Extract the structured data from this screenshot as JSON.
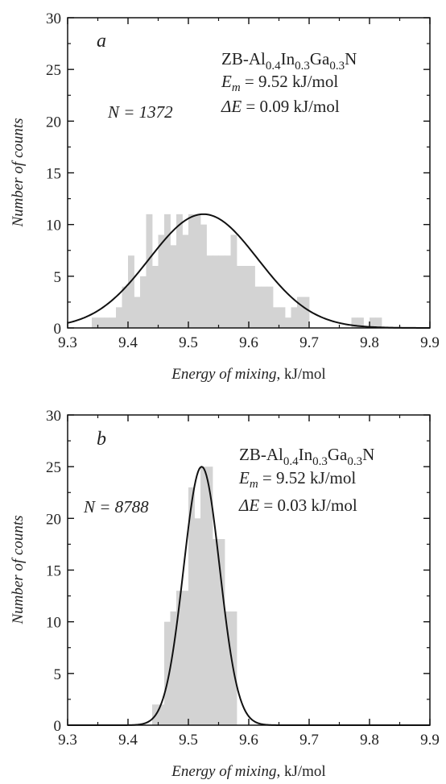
{
  "chart_data": [
    {
      "type": "bar",
      "panel_label": "a",
      "x_range": [
        9.3,
        9.9
      ],
      "y_range": [
        0,
        30
      ],
      "x_ticks": [
        "9.3",
        "9.4",
        "9.5",
        "9.6",
        "9.7",
        "9.8",
        "9.9"
      ],
      "y_ticks": [
        "0",
        "5",
        "10",
        "15",
        "20",
        "25",
        "30"
      ],
      "xlabel": "Energy of mixing",
      "xlabel_unit": ", kJ/mol",
      "ylabel": "Number of counts",
      "annotations": {
        "n_label": "N = 1372",
        "formula": {
          "pre": "ZB-Al",
          "s1": "0.4",
          "m1": "In",
          "s2": "0.3",
          "m2": "Ga",
          "s3": "0.3",
          "post": "N"
        },
        "em_sym": "E",
        "em_sub": "m",
        "em_val": " = 9.52 kJ/mol",
        "de_sym": "ΔE",
        "de_val": " = 0.09 kJ/mol"
      },
      "bin_width": 0.01,
      "bins": [
        {
          "x0": 9.34,
          "count": 1
        },
        {
          "x0": 9.35,
          "count": 1
        },
        {
          "x0": 9.36,
          "count": 1
        },
        {
          "x0": 9.37,
          "count": 1
        },
        {
          "x0": 9.38,
          "count": 2
        },
        {
          "x0": 9.39,
          "count": 4
        },
        {
          "x0": 9.4,
          "count": 7
        },
        {
          "x0": 9.41,
          "count": 3
        },
        {
          "x0": 9.42,
          "count": 5
        },
        {
          "x0": 9.43,
          "count": 11
        },
        {
          "x0": 9.44,
          "count": 6
        },
        {
          "x0": 9.45,
          "count": 9
        },
        {
          "x0": 9.46,
          "count": 11
        },
        {
          "x0": 9.47,
          "count": 8
        },
        {
          "x0": 9.48,
          "count": 11
        },
        {
          "x0": 9.49,
          "count": 9
        },
        {
          "x0": 9.5,
          "count": 11
        },
        {
          "x0": 9.51,
          "count": 11
        },
        {
          "x0": 9.52,
          "count": 10
        },
        {
          "x0": 9.53,
          "count": 7
        },
        {
          "x0": 9.54,
          "count": 7
        },
        {
          "x0": 9.55,
          "count": 7
        },
        {
          "x0": 9.56,
          "count": 7
        },
        {
          "x0": 9.57,
          "count": 9
        },
        {
          "x0": 9.58,
          "count": 6
        },
        {
          "x0": 9.59,
          "count": 6
        },
        {
          "x0": 9.6,
          "count": 6
        },
        {
          "x0": 9.61,
          "count": 4
        },
        {
          "x0": 9.62,
          "count": 4
        },
        {
          "x0": 9.63,
          "count": 4
        },
        {
          "x0": 9.64,
          "count": 2
        },
        {
          "x0": 9.65,
          "count": 2
        },
        {
          "x0": 9.66,
          "count": 1
        },
        {
          "x0": 9.67,
          "count": 2
        },
        {
          "x0": 9.68,
          "count": 3
        },
        {
          "x0": 9.69,
          "count": 3
        },
        {
          "x0": 9.77,
          "count": 1
        },
        {
          "x0": 9.78,
          "count": 1
        },
        {
          "x0": 9.8,
          "count": 1
        },
        {
          "x0": 9.81,
          "count": 1
        }
      ],
      "fit": {
        "type": "gaussian",
        "center": 9.525,
        "sigma": 0.09,
        "peak": 11
      }
    },
    {
      "type": "bar",
      "panel_label": "b",
      "x_range": [
        9.3,
        9.9
      ],
      "y_range": [
        0,
        30
      ],
      "x_ticks": [
        "9.3",
        "9.4",
        "9.5",
        "9.6",
        "9.7",
        "9.8",
        "9.9"
      ],
      "y_ticks": [
        "0",
        "5",
        "10",
        "15",
        "20",
        "25",
        "30"
      ],
      "xlabel": "Energy of mixing",
      "xlabel_unit": ", kJ/mol",
      "ylabel": "Number of counts",
      "annotations": {
        "n_label": "N = 8788",
        "formula": {
          "pre": "ZB-Al",
          "s1": "0.4",
          "m1": "In",
          "s2": "0.3",
          "m2": "Ga",
          "s3": "0.3",
          "post": "N"
        },
        "em_sym": "E",
        "em_sub": "m",
        "em_val": " = 9.52 kJ/mol",
        "de_sym": "ΔE",
        "de_val": " = 0.03 kJ/mol"
      },
      "bin_width": 0.01,
      "bins": [
        {
          "x0": 9.44,
          "count": 2
        },
        {
          "x0": 9.45,
          "count": 2
        },
        {
          "x0": 9.46,
          "count": 10
        },
        {
          "x0": 9.47,
          "count": 11
        },
        {
          "x0": 9.48,
          "count": 13
        },
        {
          "x0": 9.49,
          "count": 13
        },
        {
          "x0": 9.5,
          "count": 23
        },
        {
          "x0": 9.51,
          "count": 20
        },
        {
          "x0": 9.52,
          "count": 25
        },
        {
          "x0": 9.53,
          "count": 25
        },
        {
          "x0": 9.54,
          "count": 18
        },
        {
          "x0": 9.55,
          "count": 18
        },
        {
          "x0": 9.56,
          "count": 11
        },
        {
          "x0": 9.57,
          "count": 11
        }
      ],
      "fit": {
        "type": "gaussian",
        "center": 9.522,
        "sigma": 0.03,
        "peak": 25
      }
    }
  ]
}
